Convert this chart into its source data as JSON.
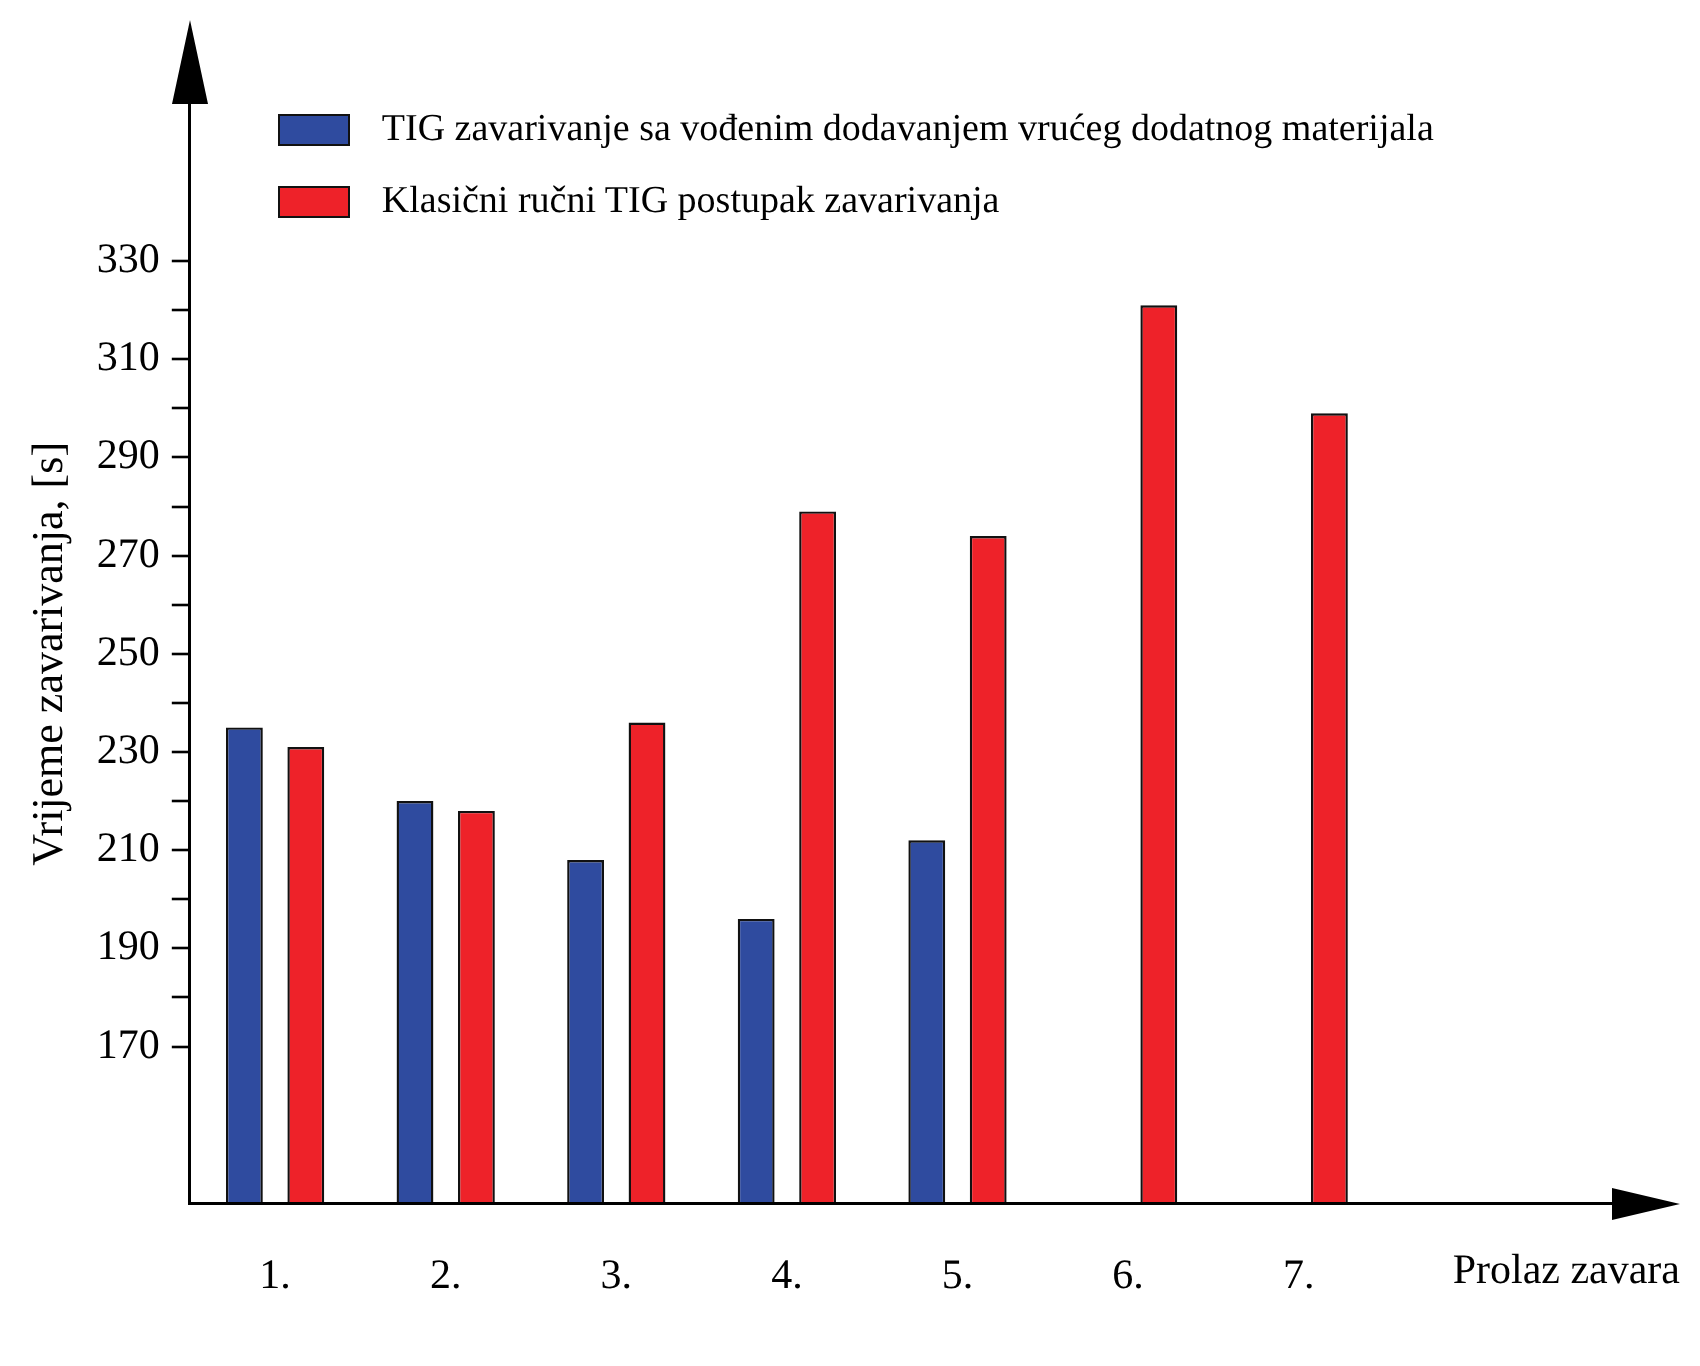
{
  "chart_data": {
    "type": "bar",
    "xlabel": "Prolaz zavara",
    "ylabel": "Vrijeme zavarivanja, [s]",
    "categories": [
      "1.",
      "2.",
      "3.",
      "4.",
      "5.",
      "6.",
      "7."
    ],
    "series": [
      {
        "name": "TIG zavarivanje sa vođenim dodavanjem vrućeg dodatnog materijala",
        "color": "#2f4b9f",
        "values": [
          235,
          220,
          208,
          196,
          212,
          null,
          null
        ]
      },
      {
        "name": "Klasični ručni TIG postupak zavarivanja",
        "color": "#ee2229",
        "values": [
          231,
          218,
          236,
          279,
          274,
          321,
          299
        ]
      }
    ],
    "ylim": [
      138,
      362
    ],
    "yticks": [
      170,
      {
        "value": 180,
        "label": null
      },
      190,
      {
        "value": 200,
        "label": null
      },
      210,
      {
        "value": 220,
        "label": null
      },
      230,
      {
        "value": 240,
        "label": null
      },
      250,
      {
        "value": 260,
        "label": null
      },
      270,
      {
        "value": 280,
        "label": null
      },
      290,
      {
        "value": 300,
        "label": null
      },
      310,
      {
        "value": 320,
        "label": null
      },
      330
    ],
    "grid": false,
    "legend": "top"
  }
}
